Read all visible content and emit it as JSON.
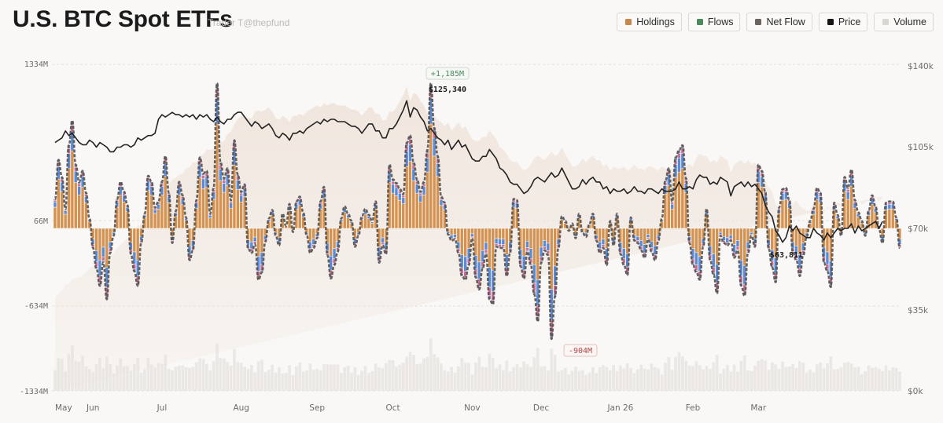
{
  "header": {
    "title": "U.S. BTC Spot ETFs",
    "subtitle": "Trader T@thepfund"
  },
  "legend": [
    {
      "label": "Holdings",
      "color": "#c8864a",
      "icon": "holdings-swatch"
    },
    {
      "label": "Flows",
      "color": "#4b8a5c",
      "icon": "flows-swatch"
    },
    {
      "label": "Net Flow",
      "color": "#6a645f",
      "icon": "net-flow-swatch"
    },
    {
      "label": "Price",
      "color": "#141414",
      "icon": "price-swatch"
    },
    {
      "label": "Volume",
      "color": "#d9d6d1",
      "icon": "volume-swatch"
    }
  ],
  "colors": {
    "holdings_area": "#efe3da",
    "ibit": "#d4914f",
    "fbtc": "#5b8ad6",
    "gbtc": "#c86f9a",
    "others": "#8a86a6",
    "misc": "#9d9a7e",
    "net_flow_line": "#55524f",
    "price_line": "#222222",
    "volume": "#e7e4e0",
    "grid": "#e4e1dc",
    "pos_annotation": "#4b8a5c",
    "neg_annotation": "#b34848"
  },
  "annotations": {
    "max_flow": "+1,185M",
    "min_flow": "-904M",
    "price_high": "$125,340",
    "price_low": "$63,811"
  },
  "chart_data": {
    "type": "bar",
    "title": "U.S. BTC Spot ETFs",
    "y_left": {
      "ticks": [
        "1334M",
        "66M",
        "-634M",
        "-1334M"
      ],
      "range": [
        -1334,
        1334
      ],
      "unit": "M USD"
    },
    "y_right": {
      "ticks": [
        "$140k",
        "$105k",
        "$70k",
        "$35k",
        "$0k"
      ],
      "range": [
        0,
        140
      ],
      "unit": "k USD"
    },
    "x_ticks": [
      "May",
      "Jun",
      "Jul",
      "Aug",
      "Sep",
      "Oct",
      "Nov",
      "Dec",
      "Jan 26",
      "Feb",
      "Mar"
    ],
    "x_tick_day_index": [
      0,
      11,
      31,
      54,
      76,
      98,
      121,
      141,
      164,
      185,
      204
    ],
    "grid": true,
    "legend_position": "top-right",
    "series": [
      {
        "name": "Net Flow",
        "type": "bar-stacked",
        "unit": "M USD",
        "values": [
          240,
          560,
          420,
          160,
          680,
          880,
          520,
          380,
          470,
          290,
          80,
          -160,
          -330,
          -470,
          -280,
          -580,
          -200,
          -60,
          240,
          380,
          300,
          190,
          -210,
          -350,
          -470,
          -120,
          120,
          430,
          380,
          170,
          220,
          380,
          590,
          290,
          -120,
          140,
          380,
          270,
          90,
          -260,
          -180,
          230,
          580,
          450,
          470,
          120,
          330,
          1185,
          540,
          410,
          490,
          230,
          720,
          440,
          300,
          360,
          -170,
          -200,
          -130,
          -420,
          -360,
          -110,
          80,
          150,
          -60,
          -140,
          120,
          20,
          200,
          -30,
          220,
          260,
          130,
          -60,
          -200,
          -160,
          -80,
          220,
          340,
          -220,
          -410,
          -300,
          -190,
          80,
          180,
          120,
          60,
          -150,
          -60,
          100,
          160,
          110,
          60,
          220,
          -280,
          -140,
          -210,
          520,
          400,
          370,
          320,
          280,
          700,
          760,
          540,
          400,
          300,
          380,
          640,
          1185,
          820,
          590,
          260,
          210,
          -50,
          -100,
          -90,
          -200,
          -390,
          -420,
          -300,
          -80,
          -400,
          -500,
          -330,
          -210,
          -580,
          -620,
          -150,
          -160,
          -160,
          -390,
          -200,
          240,
          230,
          -310,
          -410,
          -190,
          -300,
          -540,
          -760,
          -280,
          -180,
          -220,
          -904,
          -560,
          -160,
          100,
          60,
          -20,
          40,
          -80,
          120,
          -40,
          -70,
          40,
          120,
          -100,
          -200,
          -160,
          -300,
          60,
          -140,
          120,
          -210,
          -300,
          -380,
          90,
          -100,
          -120,
          -180,
          -240,
          -90,
          -190,
          -260,
          -100,
          80,
          390,
          490,
          220,
          580,
          640,
          680,
          410,
          -120,
          -300,
          -360,
          -420,
          -150,
          160,
          -260,
          -380,
          -530,
          -60,
          -120,
          -140,
          -100,
          -240,
          -180,
          -470,
          -550,
          -200,
          -60,
          -150,
          520,
          470,
          300,
          -170,
          -320,
          -440,
          170,
          320,
          330,
          230,
          -200,
          -260,
          -390,
          -220,
          -70,
          60,
          160,
          330,
          290,
          -280,
          -350,
          -480,
          210,
          110,
          -60,
          420,
          330,
          480,
          230,
          130,
          60,
          -60,
          150,
          270,
          180,
          -10,
          -120,
          210,
          220,
          220,
          90,
          -160
        ],
        "price": [
          107,
          108,
          109,
          112,
          110,
          111,
          109,
          107,
          106,
          106,
          108,
          107,
          105,
          107,
          106,
          105,
          103,
          103,
          105,
          105,
          106,
          106,
          105,
          106,
          109,
          108,
          109,
          110,
          110,
          111,
          117,
          119,
          118,
          119,
          120,
          119,
          119,
          118,
          119,
          118,
          119,
          117,
          119,
          118,
          119,
          117,
          116,
          118,
          116,
          115,
          117,
          117,
          119,
          120,
          120,
          118,
          116,
          114,
          116,
          115,
          113,
          114,
          115,
          113,
          110,
          109,
          111,
          110,
          108,
          111,
          111,
          112,
          111,
          113,
          114,
          115,
          116,
          115,
          117,
          116,
          117,
          117,
          116,
          116,
          116,
          115,
          114,
          114,
          113,
          111,
          113,
          115,
          115,
          112,
          112,
          109,
          109,
          113,
          113,
          115,
          118,
          121,
          125,
          118,
          122,
          121,
          118,
          116,
          112,
          113,
          111,
          109,
          108,
          106,
          108,
          104,
          106,
          108,
          105,
          106,
          103,
          100,
          99,
          99,
          101,
          101,
          104,
          102,
          100,
          96,
          95,
          93,
          90,
          89,
          89,
          87,
          85,
          86,
          88,
          91,
          92,
          91,
          90,
          92,
          94,
          92,
          93,
          96,
          93,
          90,
          87,
          87,
          88,
          91,
          89,
          91,
          92,
          90,
          90,
          87,
          88,
          85,
          87,
          86,
          86,
          87,
          85,
          86,
          88,
          86,
          86,
          85,
          87,
          87,
          86,
          85,
          87,
          86,
          86,
          86,
          87,
          90,
          87,
          87,
          88,
          87,
          91,
          93,
          92,
          92,
          89,
          90,
          89,
          92,
          91,
          90,
          84,
          88,
          89,
          90,
          88,
          90,
          88,
          89,
          87,
          85,
          80,
          77,
          75,
          69,
          67,
          64,
          66,
          71,
          69,
          71,
          68,
          67,
          66,
          66,
          70,
          68,
          67,
          65,
          68,
          66,
          68,
          70,
          69,
          70,
          70,
          72,
          68,
          71,
          69,
          70,
          71,
          72,
          73,
          70,
          73
        ]
      },
      {
        "name": "Price",
        "type": "line",
        "unit": "k USD",
        "high": 125.34,
        "low": 63.811
      },
      {
        "name": "Volume",
        "type": "bar",
        "unit": "relative"
      },
      {
        "name": "Holdings",
        "type": "area",
        "unit": "relative"
      }
    ]
  }
}
